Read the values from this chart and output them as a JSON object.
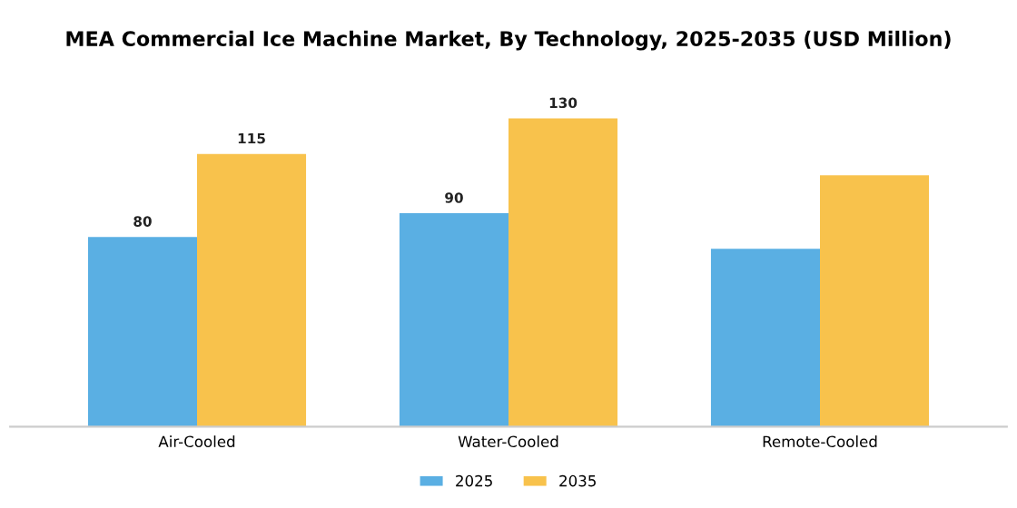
{
  "chart_data": {
    "type": "bar",
    "title": "MEA Commercial Ice Machine Market, By Technology, 2025-2035 (USD Million)",
    "categories": [
      "Air-Cooled",
      "Water-Cooled",
      "Remote-Cooled"
    ],
    "series": [
      {
        "name": "2025",
        "color": "#5aafe3",
        "values": [
          80,
          90,
          75
        ],
        "value_labels": [
          "80",
          "90",
          null
        ]
      },
      {
        "name": "2035",
        "color": "#f8c24c",
        "values": [
          115,
          130,
          106
        ],
        "value_labels": [
          "115",
          "130",
          null
        ]
      }
    ],
    "legend": "bottom",
    "grid": false
  }
}
